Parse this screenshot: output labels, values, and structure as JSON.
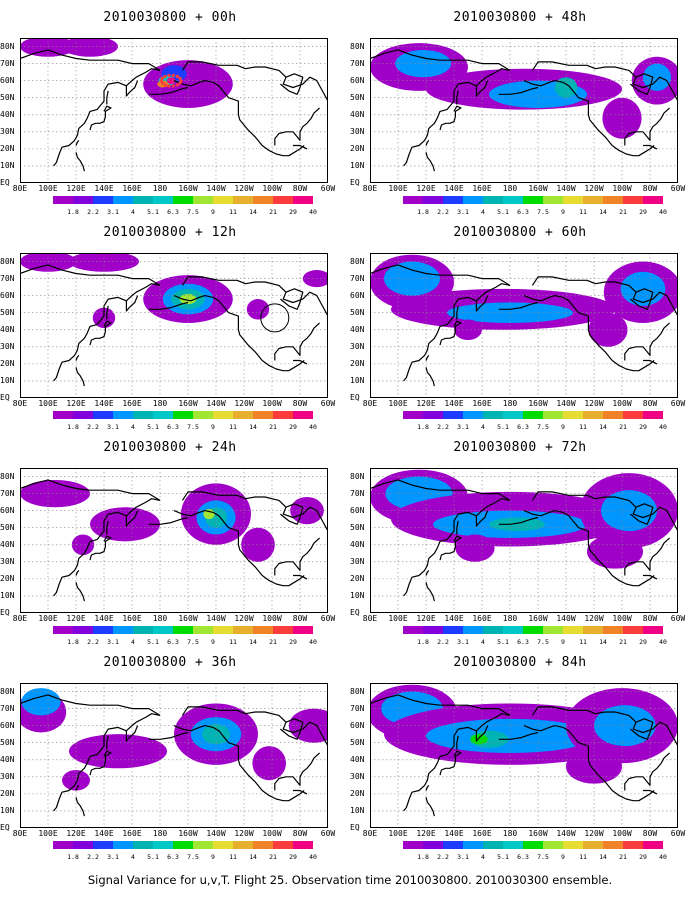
{
  "figure": {
    "caption": "Signal Variance for u,v,T. Flight 25. Observation time 2010030800. 2010030300 ensemble."
  },
  "map_axes": {
    "lat_labels": [
      "80N",
      "70N",
      "60N",
      "50N",
      "40N",
      "30N",
      "20N",
      "10N",
      "EQ"
    ],
    "lon_labels": [
      "80E",
      "100E",
      "120E",
      "140E",
      "160E",
      "180",
      "160W",
      "140W",
      "120W",
      "100W",
      "80W",
      "60W"
    ]
  },
  "colorbar": {
    "levels": [
      "1.8",
      "2.2",
      "3.1",
      "4",
      "5.1",
      "6.3",
      "7.5",
      "9",
      "11",
      "14",
      "21",
      "29",
      "40"
    ],
    "colors": [
      "#a000c8",
      "#8200dc",
      "#1e3cff",
      "#0096ff",
      "#00b4b4",
      "#00c8c8",
      "#00dc00",
      "#a0e632",
      "#e6dc32",
      "#e6af2d",
      "#f08228",
      "#fa3c3c",
      "#f00082"
    ]
  },
  "panels": [
    {
      "title": "2010030800 + 00h",
      "lead": 0
    },
    {
      "title": "2010030800 + 48h",
      "lead": 48
    },
    {
      "title": "2010030800 + 12h",
      "lead": 12
    },
    {
      "title": "2010030800 + 60h",
      "lead": 60
    },
    {
      "title": "2010030800 + 24h",
      "lead": 24
    },
    {
      "title": "2010030800 + 72h",
      "lead": 72
    },
    {
      "title": "2010030800 + 36h",
      "lead": 36
    },
    {
      "title": "2010030800 + 84h",
      "lead": 84
    }
  ]
}
